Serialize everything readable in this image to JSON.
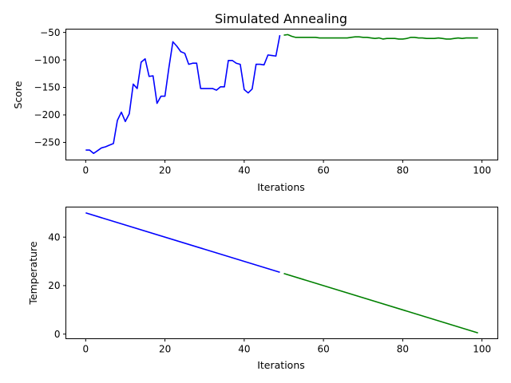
{
  "chart_data": [
    {
      "type": "line",
      "title": "Simulated Annealing",
      "xlabel": "Iterations",
      "ylabel": "Score",
      "xlim": [
        -5,
        104
      ],
      "ylim": [
        -282,
        -44
      ],
      "xticks": [
        0,
        20,
        40,
        60,
        80,
        100
      ],
      "yticks": [
        -250,
        -200,
        -150,
        -100,
        -50
      ],
      "grid": false,
      "series": [
        {
          "color": "#0000ff",
          "x": [
            0,
            1,
            2,
            3,
            4,
            5,
            6,
            7,
            8,
            9,
            10,
            11,
            12,
            13,
            14,
            15,
            16,
            17,
            18,
            19,
            20,
            21,
            22,
            23,
            24,
            25,
            26,
            27,
            28,
            29,
            30,
            31,
            32,
            33,
            34,
            35,
            36,
            37,
            38,
            39,
            40,
            41,
            42,
            43,
            44,
            45,
            46,
            47,
            48,
            49
          ],
          "values": [
            -264,
            -264,
            -270,
            -265,
            -260,
            -258,
            -255,
            -252,
            -210,
            -195,
            -212,
            -198,
            -144,
            -152,
            -104,
            -98,
            -130,
            -129,
            -179,
            -166,
            -166,
            -114,
            -67,
            -75,
            -85,
            -88,
            -108,
            -106,
            -106,
            -152,
            -152,
            -152,
            -152,
            -155,
            -149,
            -149,
            -101,
            -101,
            -106,
            -108,
            -154,
            -160,
            -153,
            -108,
            -108,
            -109,
            -91,
            -92,
            -93,
            -55
          ]
        },
        {
          "color": "#008000",
          "x": [
            50,
            51,
            52,
            53,
            54,
            55,
            56,
            57,
            58,
            59,
            60,
            61,
            62,
            63,
            64,
            65,
            66,
            67,
            68,
            69,
            70,
            71,
            72,
            73,
            74,
            75,
            76,
            77,
            78,
            79,
            80,
            81,
            82,
            83,
            84,
            85,
            86,
            87,
            88,
            89,
            90,
            91,
            92,
            93,
            94,
            95,
            96,
            97,
            98,
            99
          ],
          "values": [
            -55,
            -54,
            -57,
            -59,
            -59,
            -59,
            -59,
            -59,
            -59,
            -60,
            -60,
            -60,
            -60,
            -60,
            -60,
            -60,
            -60,
            -59,
            -58,
            -58,
            -59,
            -59,
            -60,
            -61,
            -60,
            -62,
            -61,
            -61,
            -61,
            -62,
            -62,
            -61,
            -59,
            -59,
            -60,
            -60,
            -61,
            -61,
            -61,
            -60,
            -61,
            -62,
            -62,
            -61,
            -60,
            -61,
            -60,
            -60,
            -60,
            -60
          ]
        }
      ]
    },
    {
      "type": "line",
      "title": "",
      "xlabel": "Iterations",
      "ylabel": "Temperature",
      "xlim": [
        -5,
        104
      ],
      "ylim": [
        -1.9,
        52.4
      ],
      "xticks": [
        0,
        20,
        40,
        60,
        80,
        100
      ],
      "yticks": [
        0,
        20,
        40
      ],
      "grid": false,
      "series": [
        {
          "color": "#0000ff",
          "x": [
            0,
            49
          ],
          "values": [
            50,
            25.5
          ]
        },
        {
          "color": "#008000",
          "x": [
            50,
            99
          ],
          "values": [
            25,
            0.5
          ]
        }
      ]
    }
  ]
}
